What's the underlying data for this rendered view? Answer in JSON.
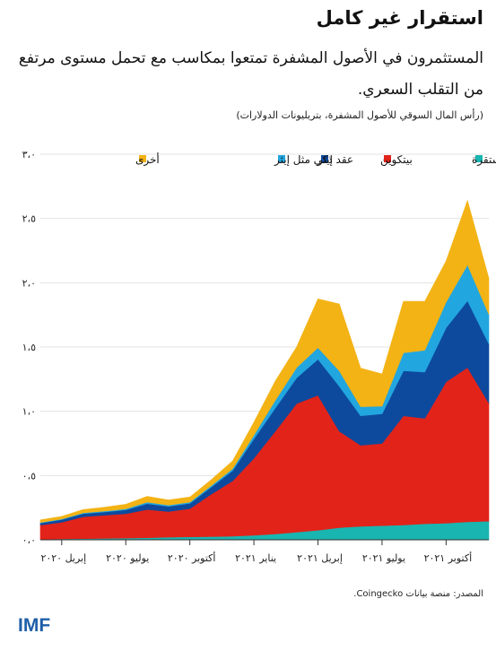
{
  "header": {
    "title": "استقرار غير كامل",
    "subtitle": "المستثمرون في الأصول المشفرة تمتعوا بمكاسب مع تحمل مستوى مرتفع من التقلب السعري.",
    "unit": "(رأس المال السوقي للأصول المشفرة، بتريليونات الدولارات)"
  },
  "footer": {
    "source": "المصدر: منصة بيانات Coingecko.",
    "logo": "IMF"
  },
  "chart_data": {
    "type": "area",
    "stacked": true,
    "ylim": [
      0,
      3.0
    ],
    "yticks": [
      0,
      0.5,
      1.0,
      1.5,
      2.0,
      2.5,
      3.0
    ],
    "ytick_labels": [
      "٠،٠",
      "٠،٥",
      "١،٠",
      "١،٥",
      "٢،٠",
      "٢،٥",
      "٣،٠"
    ],
    "x_ticks": [
      "إبريل ٢٠٢٠",
      "يوليو ٢٠٢٠",
      "أكتوبر ٢٠٢٠",
      "يناير ٢٠٢١",
      "إبريل ٢٠٢١",
      "يوليو ٢٠٢١",
      "أكتوبر ٢٠٢١"
    ],
    "x": [
      "2020-03",
      "2020-04",
      "2020-05",
      "2020-06",
      "2020-07",
      "2020-08",
      "2020-09",
      "2020-10",
      "2020-11",
      "2020-12",
      "2021-01",
      "2021-02",
      "2021-03",
      "2021-04",
      "2021-05",
      "2021-06",
      "2021-07",
      "2021-08",
      "2021-09",
      "2021-10",
      "2021-11",
      "2021-12"
    ],
    "legend_placement": "top",
    "series": [
      {
        "name": "عملات مستقرة",
        "color": "#19b5b0",
        "values": [
          0.005,
          0.007,
          0.009,
          0.011,
          0.013,
          0.016,
          0.02,
          0.023,
          0.025,
          0.028,
          0.035,
          0.045,
          0.06,
          0.075,
          0.095,
          0.105,
          0.11,
          0.115,
          0.125,
          0.13,
          0.14,
          0.145
        ]
      },
      {
        "name": "بيتكوين",
        "color": "#e2231a",
        "values": [
          0.11,
          0.13,
          0.17,
          0.18,
          0.19,
          0.22,
          0.2,
          0.22,
          0.33,
          0.43,
          0.6,
          0.8,
          1.0,
          1.05,
          0.75,
          0.63,
          0.64,
          0.85,
          0.82,
          1.1,
          1.2,
          0.92
        ]
      },
      {
        "name": "إيثر",
        "color": "#0d4a9e",
        "values": [
          0.015,
          0.02,
          0.025,
          0.025,
          0.03,
          0.045,
          0.04,
          0.04,
          0.055,
          0.08,
          0.15,
          0.18,
          0.2,
          0.28,
          0.35,
          0.23,
          0.23,
          0.35,
          0.36,
          0.42,
          0.52,
          0.46
        ]
      },
      {
        "name": "عقد ذكي مثل إيثر",
        "color": "#22a6e0",
        "values": [
          0.005,
          0.005,
          0.006,
          0.007,
          0.008,
          0.012,
          0.01,
          0.01,
          0.012,
          0.015,
          0.03,
          0.06,
          0.08,
          0.09,
          0.12,
          0.07,
          0.06,
          0.14,
          0.17,
          0.2,
          0.28,
          0.23
        ]
      },
      {
        "name": "أخرى",
        "color": "#f3b315",
        "values": [
          0.02,
          0.02,
          0.025,
          0.03,
          0.035,
          0.045,
          0.04,
          0.04,
          0.045,
          0.06,
          0.1,
          0.15,
          0.16,
          0.38,
          0.52,
          0.3,
          0.25,
          0.4,
          0.38,
          0.32,
          0.5,
          0.28
        ]
      }
    ]
  }
}
